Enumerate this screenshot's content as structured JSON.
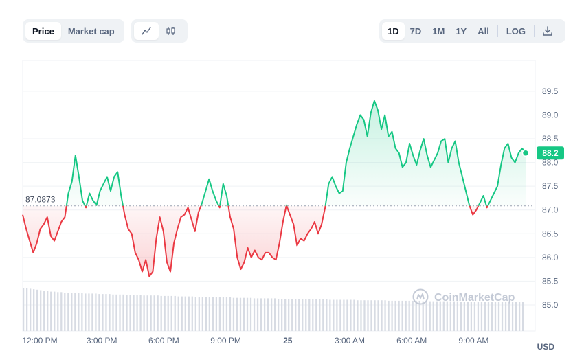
{
  "toolbar": {
    "metric_tabs": [
      "Price",
      "Market cap"
    ],
    "active_metric": "Price",
    "chart_type_icons": [
      "line-chart-icon",
      "candlestick-icon"
    ],
    "ranges": [
      "1D",
      "7D",
      "1M",
      "1Y",
      "All"
    ],
    "active_range": "1D",
    "log_label": "LOG",
    "download_icon": "download-icon"
  },
  "watermark": "CoinMarketCap",
  "currency_label": "USD",
  "colors": {
    "up": "#16c784",
    "down": "#ea3943",
    "badge": "#16c784",
    "volume": "#d7dbe3"
  },
  "chart_data": {
    "type": "line",
    "y_ticks": [
      "89.5",
      "89.0",
      "88.5",
      "88.0",
      "87.5",
      "87.0",
      "86.5",
      "86.0",
      "85.5",
      "85.0"
    ],
    "x_ticks": [
      "12:00 PM",
      "3:00 PM",
      "6:00 PM",
      "9:00 PM",
      "25",
      "3:00 AM",
      "6:00 AM",
      "9:00 AM"
    ],
    "ylim": [
      84.45,
      90.15
    ],
    "reference_value": 87.0873,
    "reference_label": "87.0873",
    "last_value_label": "88.2",
    "grid": true,
    "series": [
      {
        "values": [
          86.9,
          86.6,
          86.35,
          86.1,
          86.3,
          86.6,
          86.7,
          86.85,
          86.45,
          86.35,
          86.55,
          86.75,
          86.85,
          87.35,
          87.6,
          88.15,
          87.7,
          87.2,
          87.05,
          87.35,
          87.2,
          87.1,
          87.4,
          87.55,
          87.7,
          87.4,
          87.7,
          87.8,
          87.3,
          86.9,
          86.6,
          86.5,
          86.1,
          85.95,
          85.7,
          85.95,
          85.6,
          85.7,
          86.4,
          86.85,
          86.55,
          85.9,
          85.7,
          86.3,
          86.6,
          86.85,
          86.9,
          87.05,
          86.8,
          86.55,
          86.95,
          87.15,
          87.4,
          87.65,
          87.4,
          87.2,
          87.05,
          87.55,
          87.3,
          86.85,
          86.6,
          86.0,
          85.75,
          85.9,
          86.2,
          86.0,
          86.15,
          86.0,
          85.95,
          86.1,
          86.1,
          86.0,
          85.95,
          86.3,
          86.75,
          87.1,
          86.9,
          86.7,
          86.25,
          86.4,
          86.35,
          86.5,
          86.6,
          86.75,
          86.5,
          86.7,
          87.05,
          87.55,
          87.7,
          87.5,
          87.35,
          87.4,
          88.0,
          88.3,
          88.55,
          88.8,
          89.0,
          88.9,
          88.55,
          89.05,
          89.3,
          89.1,
          88.7,
          89.0,
          88.55,
          88.65,
          88.3,
          88.2,
          87.9,
          88.0,
          88.4,
          88.15,
          87.95,
          88.25,
          88.5,
          88.15,
          87.9,
          88.05,
          88.2,
          88.45,
          88.5,
          88.0,
          88.3,
          88.45,
          88.0,
          87.7,
          87.4,
          87.1,
          86.9,
          87.0,
          87.15,
          87.3,
          87.05,
          87.2,
          87.35,
          87.5,
          87.95,
          88.3,
          88.4,
          88.1,
          88.0,
          88.2,
          88.3,
          88.2
        ]
      }
    ],
    "volume": [
      0.9,
      0.89,
      0.88,
      0.87,
      0.86,
      0.85,
      0.84,
      0.83,
      0.82,
      0.82,
      0.81,
      0.81,
      0.8,
      0.8,
      0.8,
      0.79,
      0.79,
      0.79,
      0.78,
      0.78,
      0.78,
      0.78,
      0.77,
      0.77,
      0.77,
      0.77,
      0.76,
      0.76,
      0.76,
      0.76,
      0.75,
      0.75,
      0.75,
      0.75,
      0.75,
      0.74,
      0.74,
      0.74,
      0.74,
      0.74,
      0.73,
      0.73,
      0.73,
      0.73,
      0.73,
      0.72,
      0.72,
      0.72,
      0.72,
      0.72,
      0.71,
      0.71,
      0.71,
      0.71,
      0.71,
      0.7,
      0.7,
      0.7,
      0.7,
      0.7,
      0.7,
      0.69,
      0.69,
      0.69,
      0.69,
      0.69,
      0.69,
      0.68,
      0.68,
      0.68,
      0.68,
      0.68,
      0.68,
      0.68,
      0.67,
      0.67,
      0.67,
      0.67,
      0.67,
      0.67,
      0.67,
      0.66,
      0.66,
      0.66,
      0.66,
      0.66,
      0.66,
      0.66,
      0.66,
      0.65,
      0.65,
      0.65,
      0.65,
      0.65,
      0.65,
      0.65,
      0.65,
      0.64,
      0.64,
      0.64,
      0.64,
      0.64,
      0.64,
      0.64,
      0.64,
      0.64,
      0.63,
      0.63,
      0.63,
      0.63,
      0.63,
      0.63,
      0.63,
      0.63,
      0.63,
      0.63,
      0.62,
      0.62,
      0.62,
      0.62,
      0.62,
      0.62,
      0.62,
      0.62,
      0.62,
      0.62,
      0.62,
      0.61,
      0.61,
      0.61,
      0.61,
      0.61,
      0.61,
      0.61,
      0.61,
      0.61,
      0.61,
      0.61,
      0.61,
      0.6,
      0.6,
      0.6,
      0.6,
      0.6,
      0.6,
      0.6
    ]
  }
}
